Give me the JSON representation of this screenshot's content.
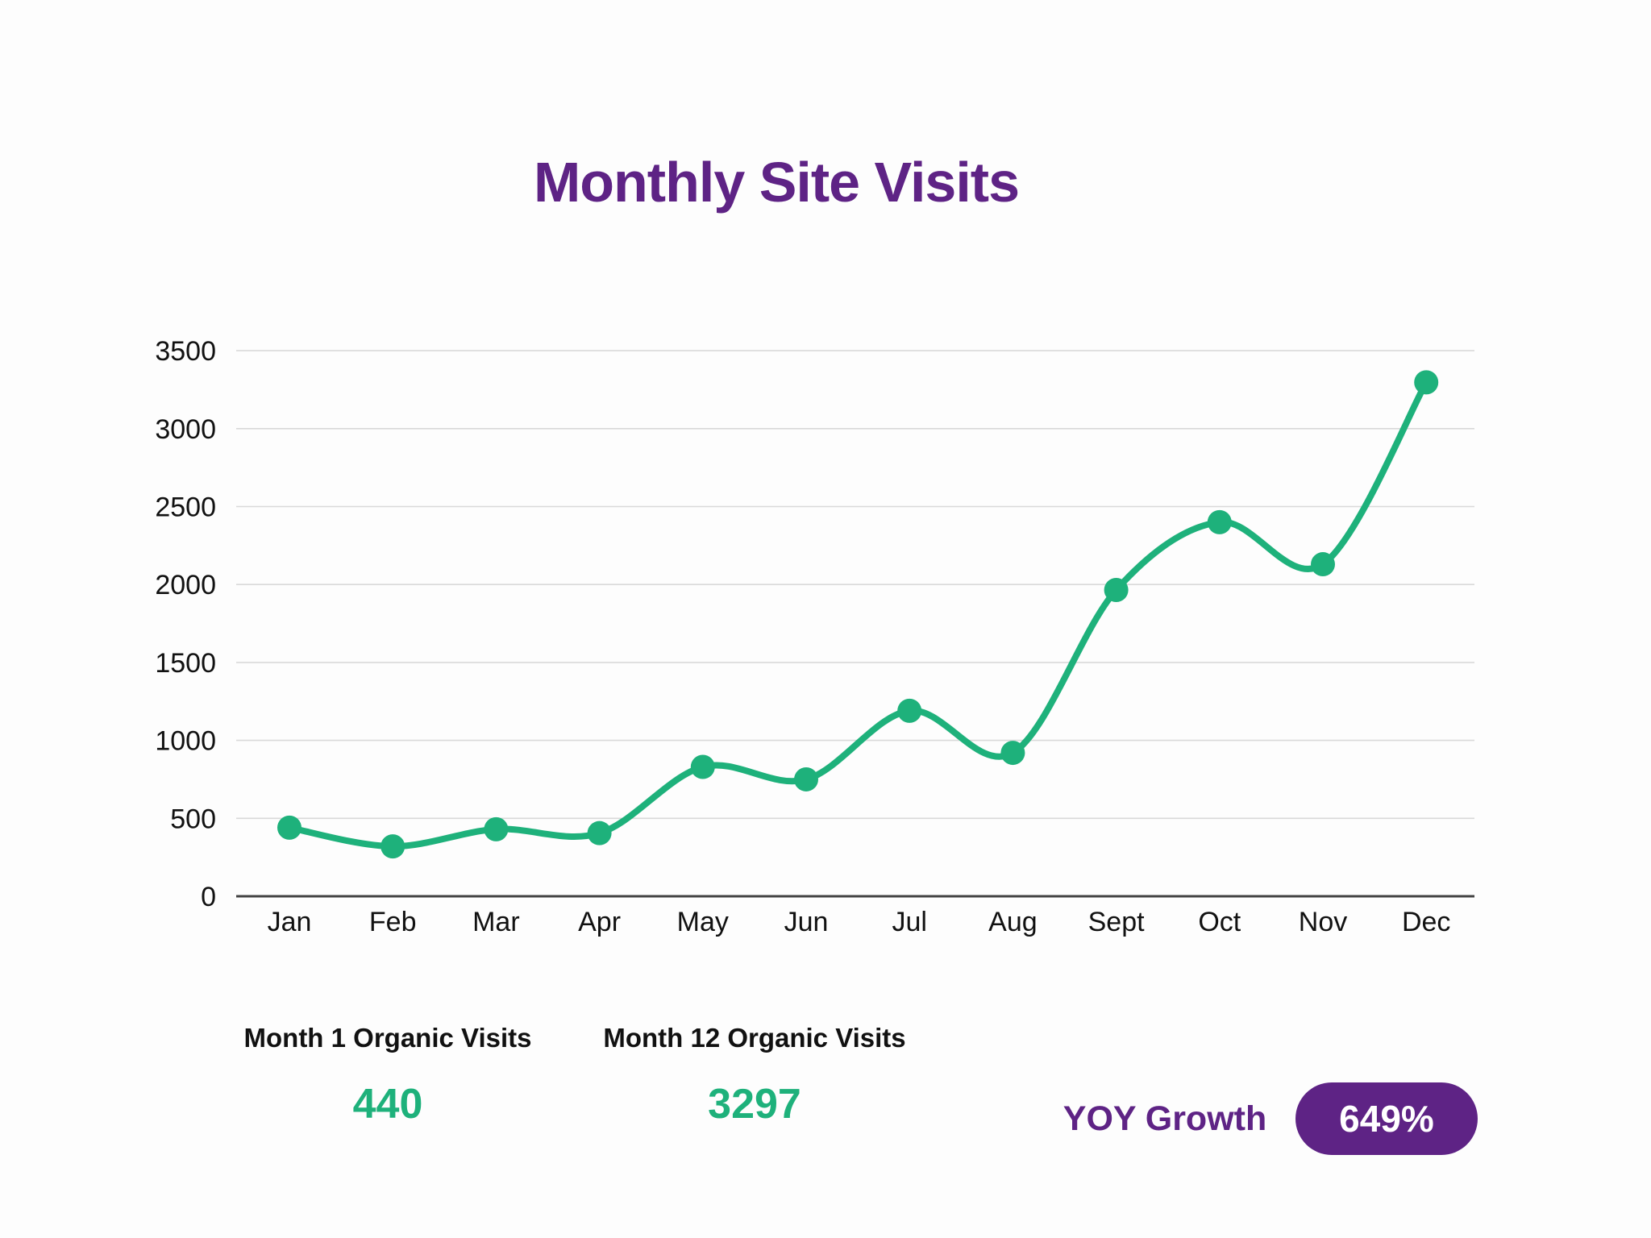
{
  "title": "Monthly Site Visits",
  "colors": {
    "accent_purple": "#5E2385",
    "accent_green": "#1EB17B",
    "gridline": "#D9D9D9",
    "axis_line": "#424242",
    "tick_label": "#111111",
    "background": "#FDFDFD",
    "pill_text": "#FFFFFF"
  },
  "chart_data": {
    "type": "line",
    "title": "Monthly Site Visits",
    "categories": [
      "Jan",
      "Feb",
      "Mar",
      "Apr",
      "May",
      "Jun",
      "Jul",
      "Aug",
      "Sept",
      "Oct",
      "Nov",
      "Dec"
    ],
    "values": [
      440,
      320,
      430,
      405,
      830,
      750,
      1190,
      920,
      1965,
      2400,
      2130,
      3297
    ],
    "xlabel": "",
    "ylabel": "",
    "ylim": [
      0,
      3500
    ],
    "yticks": [
      0,
      500,
      1000,
      1500,
      2000,
      2500,
      3000,
      3500
    ],
    "grid": "horizontal",
    "legend": "none",
    "line_color": "#1EB17B",
    "marker": "circle",
    "smooth": true
  },
  "stats": [
    {
      "label": "Month 1 Organic Visits",
      "value": "440"
    },
    {
      "label": "Month 12 Organic Visits",
      "value": "3297"
    }
  ],
  "yoy": {
    "label": "YOY Growth",
    "badge": "649%"
  }
}
